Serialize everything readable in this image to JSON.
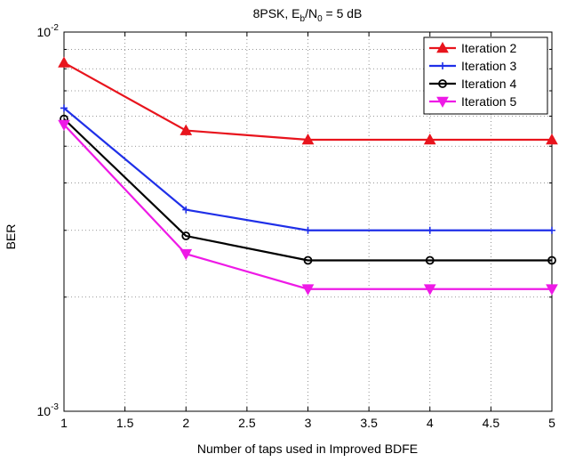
{
  "chart_data": {
    "type": "line",
    "title": "8PSK, E_b/N_0 = 5 dB",
    "title_parts": {
      "pre": "8PSK, E",
      "sub1": "b",
      "mid": "/N",
      "sub2": "0",
      "post": " = 5 dB"
    },
    "xlabel": "Number of taps used in Improved BDFE",
    "ylabel": "BER",
    "x": [
      1,
      2,
      3,
      4,
      5
    ],
    "xlim": [
      1,
      5
    ],
    "ylim": [
      0.001,
      0.01
    ],
    "yscale": "log",
    "xticks": [
      1,
      1.5,
      2,
      2.5,
      3,
      3.5,
      4,
      4.5,
      5
    ],
    "xtick_labels": [
      "1",
      "1.5",
      "2",
      "2.5",
      "3",
      "3.5",
      "4",
      "4.5",
      "5"
    ],
    "yticks": [
      {
        "base": "10",
        "exp": "-3",
        "value": 0.001
      },
      {
        "base": "10",
        "exp": "-2",
        "value": 0.01
      }
    ],
    "grid": true,
    "legend_position": "top-right",
    "series": [
      {
        "name": "Iteration 2",
        "color": "#e8141d",
        "marker": "triangle-up",
        "values": [
          0.0083,
          0.0055,
          0.0052,
          0.0052,
          0.0052
        ]
      },
      {
        "name": "Iteration 3",
        "color": "#1f2fe8",
        "marker": "plus",
        "values": [
          0.0063,
          0.0034,
          0.003,
          0.003,
          0.003
        ]
      },
      {
        "name": "Iteration 4",
        "color": "#000000",
        "marker": "circle",
        "values": [
          0.0059,
          0.0029,
          0.0025,
          0.0025,
          0.0025
        ]
      },
      {
        "name": "Iteration 5",
        "color": "#ee1ae6",
        "marker": "triangle-down",
        "values": [
          0.0057,
          0.0026,
          0.0021,
          0.0021,
          0.0021
        ]
      }
    ]
  }
}
